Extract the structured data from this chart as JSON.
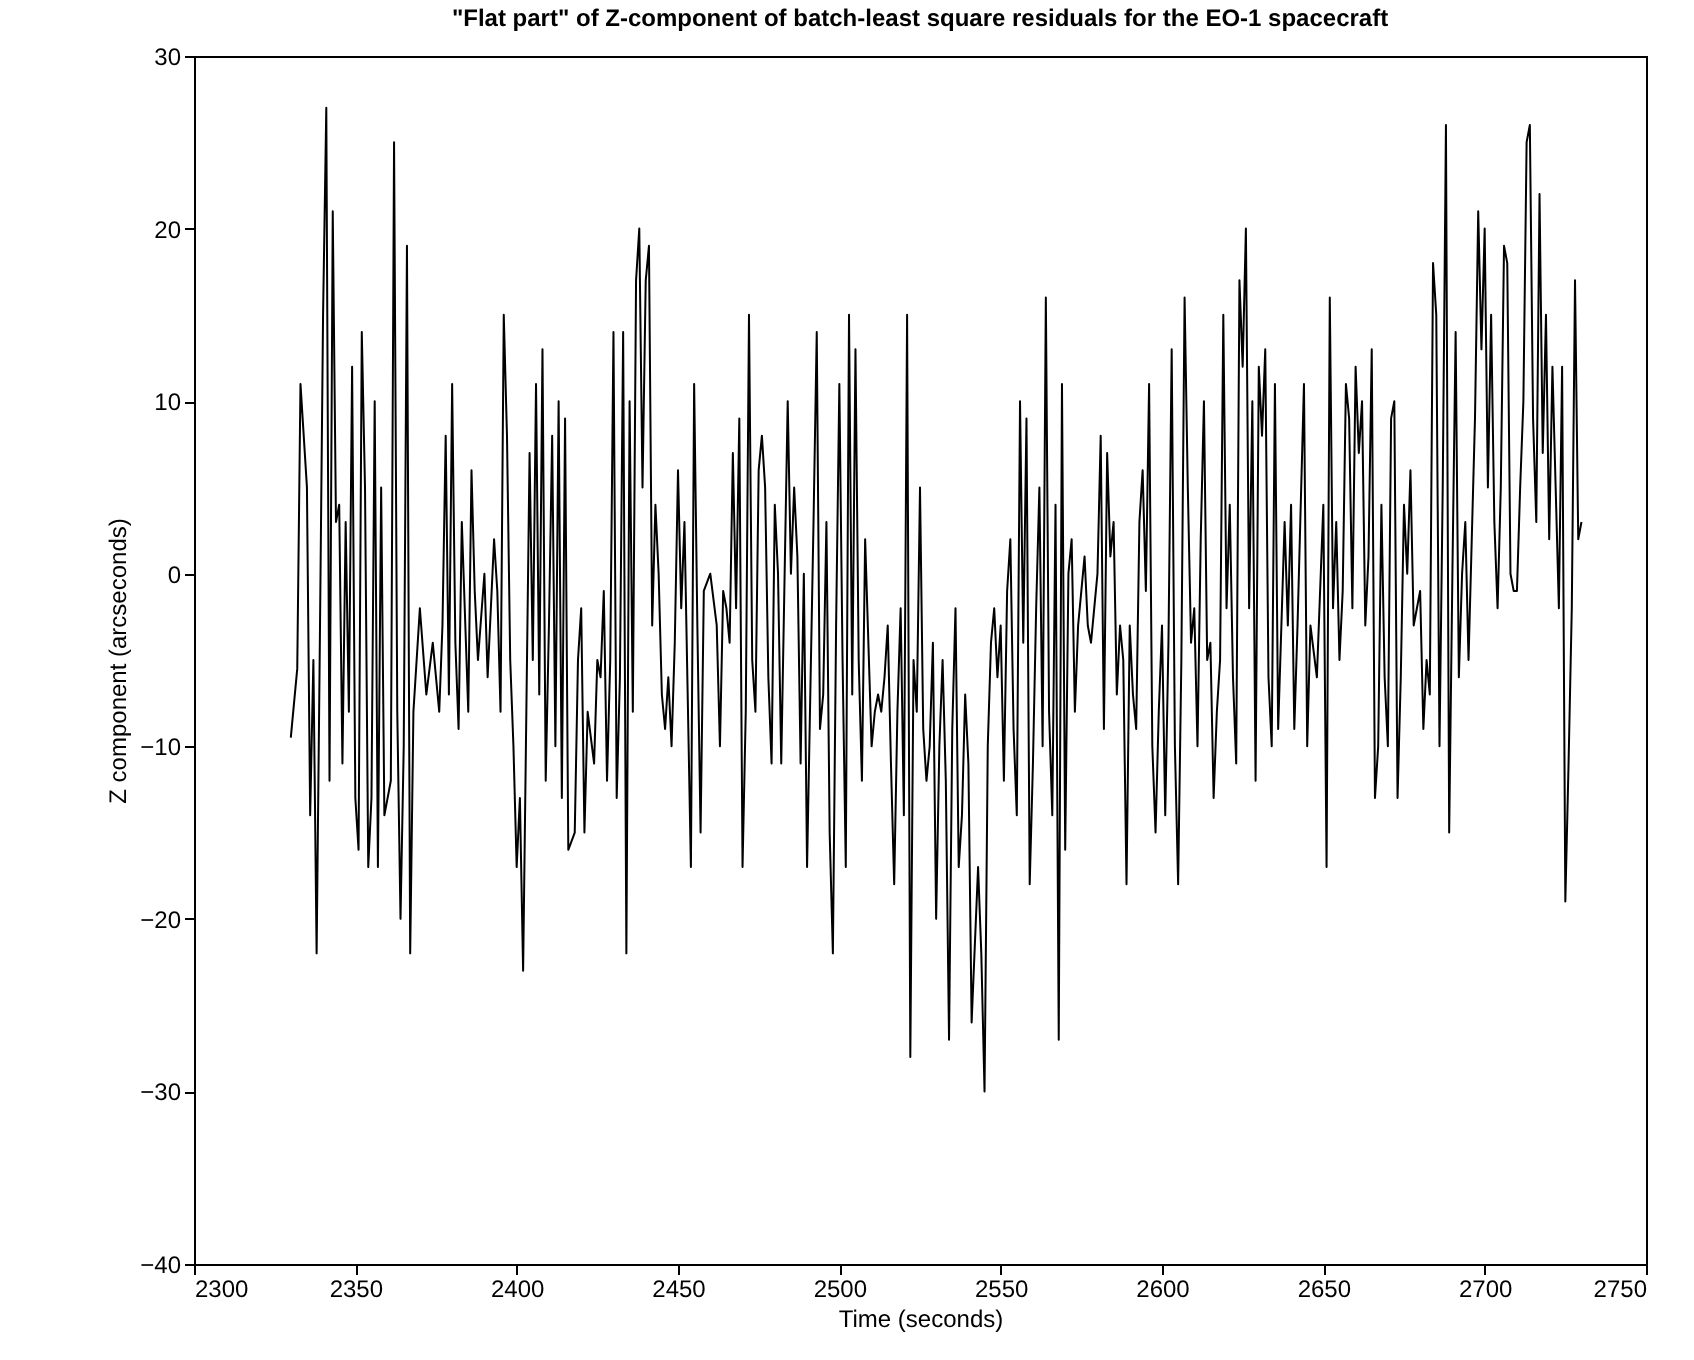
{
  "chart_data": {
    "type": "line",
    "title": "\"Flat part\" of Z-component of batch-least square residuals for the EO-1 spacecraft",
    "xlabel": "Time (seconds)",
    "ylabel": "Z component (arcseconds)",
    "xlim": [
      2300,
      2750
    ],
    "xticks": [
      2300,
      2350,
      2400,
      2450,
      2500,
      2550,
      2600,
      2650,
      2700,
      2750
    ],
    "ylim": [
      -40,
      30
    ],
    "yticks": [
      -40,
      -30,
      -20,
      -10,
      0,
      10,
      20,
      30
    ],
    "grid": false,
    "series": [
      {
        "color": "#000000",
        "x": [
          2330,
          2332,
          2333,
          2335,
          2336,
          2337,
          2338,
          2339,
          2340,
          2341,
          2342,
          2343,
          2344,
          2345,
          2346,
          2347,
          2348,
          2349,
          2350,
          2351,
          2352,
          2353,
          2354,
          2355,
          2356,
          2357,
          2358,
          2359,
          2361,
          2362,
          2363,
          2364,
          2365,
          2366,
          2367,
          2368,
          2369,
          2370,
          2372,
          2374,
          2376,
          2377,
          2378,
          2379,
          2380,
          2381,
          2382,
          2383,
          2385,
          2386,
          2387,
          2388,
          2390,
          2391,
          2393,
          2394,
          2395,
          2396,
          2397,
          2398,
          2399,
          2400,
          2401,
          2402,
          2403,
          2404,
          2405,
          2406,
          2407,
          2408,
          2409,
          2410,
          2411,
          2412,
          2413,
          2414,
          2415,
          2416,
          2418,
          2419,
          2420,
          2421,
          2422,
          2424,
          2425,
          2426,
          2427,
          2428,
          2429,
          2430,
          2431,
          2432,
          2433,
          2434,
          2435,
          2436,
          2437,
          2438,
          2439,
          2440,
          2441,
          2442,
          2443,
          2444,
          2445,
          2446,
          2447,
          2448,
          2449,
          2450,
          2451,
          2452,
          2453,
          2454,
          2455,
          2456,
          2457,
          2458,
          2460,
          2462,
          2463,
          2464,
          2465,
          2466,
          2467,
          2468,
          2469,
          2470,
          2471,
          2472,
          2473,
          2474,
          2475,
          2476,
          2477,
          2478,
          2479,
          2480,
          2481,
          2482,
          2484,
          2485,
          2486,
          2487,
          2488,
          2489,
          2490,
          2492,
          2493,
          2494,
          2495,
          2496,
          2497,
          2498,
          2499,
          2500,
          2501,
          2502,
          2503,
          2504,
          2505,
          2506,
          2507,
          2508,
          2510,
          2511,
          2512,
          2513,
          2514,
          2515,
          2516,
          2517,
          2518,
          2519,
          2520,
          2521,
          2522,
          2523,
          2524,
          2525,
          2526,
          2527,
          2528,
          2529,
          2530,
          2531,
          2532,
          2533,
          2534,
          2535,
          2536,
          2537,
          2538,
          2539,
          2540,
          2541,
          2543,
          2544,
          2545,
          2546,
          2547,
          2548,
          2549,
          2550,
          2551,
          2552,
          2553,
          2554,
          2555,
          2556,
          2557,
          2558,
          2559,
          2560,
          2561,
          2562,
          2563,
          2564,
          2565,
          2566,
          2567,
          2568,
          2569,
          2570,
          2571,
          2572,
          2573,
          2574,
          2576,
          2577,
          2578,
          2580,
          2581,
          2582,
          2583,
          2584,
          2585,
          2586,
          2587,
          2588,
          2589,
          2590,
          2591,
          2592,
          2593,
          2594,
          2595,
          2596,
          2597,
          2598,
          2599,
          2600,
          2601,
          2602,
          2603,
          2604,
          2605,
          2606,
          2607,
          2608,
          2609,
          2610,
          2611,
          2612,
          2613,
          2614,
          2615,
          2616,
          2617,
          2618,
          2619,
          2620,
          2621,
          2622,
          2623,
          2624,
          2625,
          2626,
          2627,
          2628,
          2629,
          2630,
          2631,
          2632,
          2633,
          2634,
          2635,
          2636,
          2637,
          2638,
          2639,
          2640,
          2641,
          2642,
          2644,
          2645,
          2646,
          2648,
          2650,
          2651,
          2652,
          2653,
          2654,
          2655,
          2656,
          2657,
          2658,
          2659,
          2660,
          2661,
          2662,
          2663,
          2664,
          2665,
          2666,
          2667,
          2668,
          2669,
          2670,
          2671,
          2672,
          2673,
          2674,
          2675,
          2676,
          2677,
          2678,
          2679,
          2680,
          2681,
          2682,
          2683,
          2684,
          2685,
          2686,
          2687,
          2688,
          2689,
          2690,
          2691,
          2692,
          2693,
          2694,
          2695,
          2696,
          2697,
          2698,
          2699,
          2700,
          2701,
          2702,
          2703,
          2704,
          2705,
          2706,
          2707,
          2708,
          2709,
          2710,
          2711,
          2712,
          2713,
          2714,
          2715,
          2716,
          2717,
          2718,
          2719,
          2720,
          2721,
          2722,
          2723,
          2724,
          2725,
          2726,
          2727,
          2728,
          2729,
          2730
        ],
        "values": [
          -9.5,
          -5.5,
          11,
          5,
          -14,
          -5,
          -22,
          -4,
          15,
          27,
          -12,
          21,
          3,
          4,
          -11,
          3,
          -8,
          12,
          -13,
          -16,
          14,
          5,
          -17,
          -13,
          10,
          -17,
          5,
          -14,
          -12,
          25,
          -8,
          -20,
          -10,
          19,
          -22,
          -8,
          -5,
          -2,
          -7,
          -4,
          -8,
          -3,
          8,
          -7,
          11,
          -4,
          -9,
          3,
          -8,
          6,
          -1,
          -5,
          0,
          -6,
          2,
          -1,
          -8,
          15,
          8,
          -5,
          -10,
          -17,
          -13,
          -23,
          -8,
          7,
          -5,
          11,
          -7,
          13,
          -12,
          -3,
          8,
          -10,
          10,
          -13,
          9,
          -16,
          -15,
          -5,
          -2,
          -15,
          -8,
          -11,
          -5,
          -6,
          -1,
          -12,
          -5,
          14,
          -13,
          -6,
          14,
          -22,
          10,
          -8,
          17,
          20,
          5,
          17,
          19,
          -3,
          4,
          0,
          -7,
          -9,
          -6,
          -10,
          -4,
          6,
          -2,
          3,
          -7,
          -17,
          11,
          -3,
          -15,
          -1,
          0,
          -3,
          -10,
          -1,
          -2,
          -4,
          7,
          -2,
          9,
          -17,
          -8,
          15,
          -5,
          -8,
          6,
          8,
          5,
          -6,
          -11,
          4,
          0,
          -11,
          10,
          0,
          5,
          1,
          -11,
          0,
          -17,
          3,
          14,
          -9,
          -7,
          3,
          -15,
          -22,
          -3,
          11,
          -5,
          -17,
          15,
          -7,
          13,
          -5,
          -12,
          2,
          -10,
          -8,
          -7,
          -8,
          -6,
          -3,
          -11,
          -18,
          -8,
          -2,
          -14,
          15,
          -28,
          -5,
          -8,
          5,
          -9,
          -12,
          -10,
          -4,
          -20,
          -10,
          -5,
          -12,
          -27,
          -9,
          -2,
          -17,
          -14,
          -7,
          -11,
          -26,
          -17,
          -22,
          -30,
          -10,
          -4,
          -2,
          -6,
          -3,
          -12,
          -1,
          2,
          -9,
          -14,
          10,
          -4,
          9,
          -18,
          -11,
          -2,
          5,
          -10,
          16,
          -8,
          -14,
          4,
          -27,
          11,
          -16,
          0,
          2,
          -8,
          -3,
          1,
          -3,
          -4,
          0,
          8,
          -9,
          7,
          1,
          3,
          -7,
          -3,
          -5,
          -18,
          -3,
          -7,
          -9,
          3,
          6,
          -1,
          11,
          -10,
          -15,
          -8,
          -3,
          -14,
          -4,
          13,
          -10,
          -18,
          -5,
          16,
          5,
          -4,
          -2,
          -10,
          2,
          10,
          -5,
          -4,
          -13,
          -8,
          -5,
          15,
          -2,
          4,
          -6,
          -11,
          17,
          12,
          20,
          -2,
          10,
          -12,
          12,
          8,
          13,
          -6,
          -10,
          11,
          -9,
          -3,
          3,
          -3,
          4,
          -9,
          -3,
          11,
          -10,
          -3,
          -6,
          4,
          -17,
          16,
          -2,
          3,
          -5,
          -1,
          11,
          9,
          -2,
          12,
          7,
          10,
          -3,
          1,
          13,
          -13,
          -10,
          4,
          -6,
          -10,
          9,
          10,
          -13,
          -6,
          4,
          0,
          6,
          -3,
          -2,
          -1,
          -9,
          -5,
          -7,
          18,
          15,
          -10,
          5,
          26,
          -15,
          0,
          14,
          -6,
          0,
          3,
          -5,
          2,
          9,
          21,
          13,
          20,
          5,
          15,
          3,
          -2,
          5,
          19,
          18,
          0,
          -1,
          -1,
          5,
          10,
          25,
          26,
          9,
          3,
          22,
          7,
          15,
          2,
          12,
          5,
          -2,
          12,
          -19,
          -11,
          -2,
          17,
          2,
          3
        ]
      }
    ]
  }
}
